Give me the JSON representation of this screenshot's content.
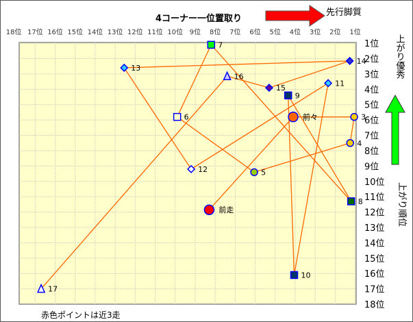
{
  "chart_data": {
    "type": "scatter",
    "title": "4コーナー一位置取り",
    "top_annotation": "先行脚質",
    "right_annotation_top": "上がり優秀",
    "ylabel": "上がり順位",
    "footnote": "赤色ポイントは近3走",
    "x_ticks": [
      "18位",
      "17位",
      "16位",
      "15位",
      "14位",
      "13位",
      "12位",
      "11位",
      "10位",
      "9位",
      "8位",
      "7位",
      "6位",
      "5位",
      "4位",
      "3位",
      "2位",
      "1位"
    ],
    "y_ticks": [
      "1位",
      "2位",
      "3位",
      "4位",
      "5位",
      "6位",
      "7位",
      "8位",
      "9位",
      "10位",
      "11位",
      "12位",
      "13位",
      "14位",
      "15位",
      "16位",
      "17位",
      "18位"
    ],
    "xlim": [
      17.8,
      0.95
    ],
    "ylim": [
      0.95,
      18
    ],
    "x_reversed": true,
    "y_reversed": true,
    "grid": true,
    "background_color": "#ffffcc",
    "line_color": "#ff6600",
    "arrow_colors": {
      "right": "#ff0000",
      "up": "#00ff00"
    },
    "points": [
      {
        "label": "前走",
        "x": 8.3,
        "y": 11.85,
        "marker": "circle",
        "fill": "#ff0000",
        "big": true
      },
      {
        "label": "前々",
        "x": 4.1,
        "y": 5.8,
        "marker": "circle",
        "fill": "#ff6600",
        "big": true
      },
      {
        "label": "3",
        "x": 1.05,
        "y": 5.8,
        "marker": "circle",
        "fill": "#ffcc00"
      },
      {
        "label": "4",
        "x": 1.25,
        "y": 7.5,
        "marker": "circle",
        "fill": "#ffcc00"
      },
      {
        "label": "5",
        "x": 6.05,
        "y": 9.4,
        "marker": "circle",
        "fill": "#99cc00"
      },
      {
        "label": "6",
        "x": 9.9,
        "y": 5.8,
        "marker": "square",
        "fill": "#ffffcc"
      },
      {
        "label": "7",
        "x": 8.2,
        "y": 1.1,
        "marker": "square",
        "fill": "#00ff00"
      },
      {
        "label": "8",
        "x": 1.2,
        "y": 11.3,
        "marker": "square",
        "fill": "#006600"
      },
      {
        "label": "9",
        "x": 4.35,
        "y": 4.4,
        "marker": "square",
        "fill": "#003366"
      },
      {
        "label": "10",
        "x": 4.05,
        "y": 16.1,
        "marker": "square",
        "fill": "#003366"
      },
      {
        "label": "11",
        "x": 2.35,
        "y": 3.6,
        "marker": "diamond",
        "fill": "#33ccff"
      },
      {
        "label": "12",
        "x": 9.2,
        "y": 9.2,
        "marker": "diamond",
        "fill": "#ffffff"
      },
      {
        "label": "13",
        "x": 12.55,
        "y": 2.6,
        "marker": "diamond",
        "fill": "#33ccff"
      },
      {
        "label": "14",
        "x": 1.27,
        "y": 2.15,
        "marker": "diamond",
        "fill": "#3333cc"
      },
      {
        "label": "15",
        "x": 5.3,
        "y": 3.9,
        "marker": "diamond",
        "fill": "#660099"
      },
      {
        "label": "16",
        "x": 7.4,
        "y": 3.15,
        "marker": "triangle",
        "fill": "#ccccff"
      },
      {
        "label": "17",
        "x": 16.7,
        "y": 17.0,
        "marker": "triangle",
        "fill": "#ffffff"
      }
    ]
  }
}
